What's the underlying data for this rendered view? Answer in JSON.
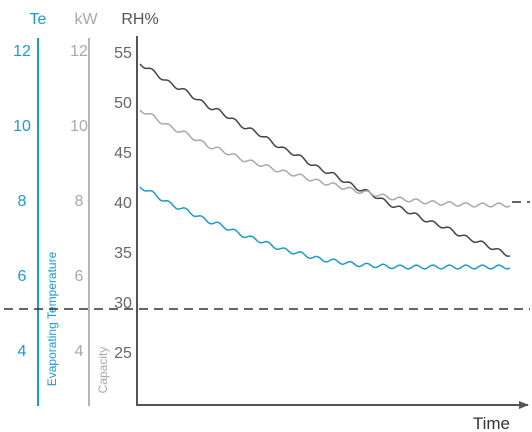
{
  "chart_data": {
    "type": "line",
    "xlabel": "Time",
    "axes": {
      "te": {
        "unit": "Te",
        "name": "Evaporating Temperature",
        "ticks": [
          4,
          6,
          8,
          10,
          12
        ],
        "range": [
          4,
          12
        ],
        "color": "#1a9bd1"
      },
      "kw": {
        "unit": "kW",
        "name": "Capacity",
        "ticks": [
          4,
          6,
          8,
          10,
          12
        ],
        "range": [
          4,
          12
        ],
        "color": "#a9a9a9"
      },
      "rh": {
        "unit": "RH%",
        "ticks": [
          25,
          30,
          35,
          40,
          45,
          50,
          55
        ],
        "range": [
          25,
          55
        ],
        "color": "#666666"
      }
    },
    "reference_lines": [
      {
        "axis": "rh",
        "value": 29.3
      },
      {
        "axis": "rh",
        "value": 40.0
      }
    ],
    "series": [
      {
        "axis": "rh",
        "color": "#444444",
        "x": [
          0,
          0.1,
          0.2,
          0.3,
          0.4,
          0.5,
          0.6,
          0.7,
          0.8,
          0.9,
          1.0
        ],
        "y": [
          53.8,
          51.5,
          49.3,
          47.2,
          45.1,
          43.1,
          41.2,
          39.4,
          37.8,
          36.2,
          34.7
        ]
      },
      {
        "axis": "rh",
        "color": "#a9a9a9",
        "x": [
          0,
          0.1,
          0.2,
          0.3,
          0.4,
          0.5,
          0.6,
          0.7,
          0.8,
          0.9,
          1.0
        ],
        "y": [
          49.2,
          47.2,
          45.4,
          44.0,
          42.9,
          41.9,
          41.0,
          40.3,
          39.9,
          39.7,
          39.7
        ]
      },
      {
        "axis": "rh",
        "color": "#1a9bd1",
        "x": [
          0,
          0.1,
          0.2,
          0.3,
          0.4,
          0.5,
          0.6,
          0.7,
          0.8,
          0.9,
          1.0
        ],
        "y": [
          41.5,
          39.5,
          37.9,
          36.4,
          35.1,
          34.2,
          33.7,
          33.5,
          33.5,
          33.5,
          33.5
        ]
      }
    ]
  }
}
